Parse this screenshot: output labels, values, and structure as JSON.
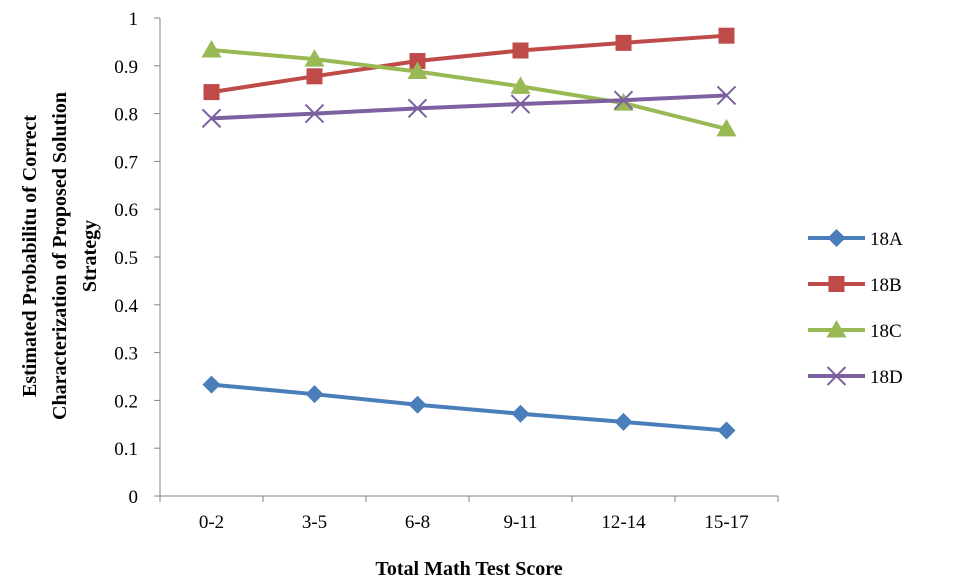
{
  "chart_data": {
    "type": "line",
    "categories": [
      "0-2",
      "3-5",
      "6-8",
      "9-11",
      "12-14",
      "15-17"
    ],
    "series": [
      {
        "name": "18A",
        "values": [
          0.233,
          0.213,
          0.191,
          0.172,
          0.155,
          0.137
        ],
        "color": "#4a7ebb",
        "marker": "diamond"
      },
      {
        "name": "18B",
        "values": [
          0.845,
          0.878,
          0.91,
          0.932,
          0.948,
          0.963
        ],
        "color": "#be4b48",
        "marker": "square"
      },
      {
        "name": "18C",
        "values": [
          0.933,
          0.914,
          0.888,
          0.857,
          0.822,
          0.768
        ],
        "color": "#98b954",
        "marker": "triangle"
      },
      {
        "name": "18D",
        "values": [
          0.79,
          0.8,
          0.811,
          0.82,
          0.828,
          0.838
        ],
        "color": "#7d60a0",
        "marker": "x"
      }
    ],
    "yticks": [
      "0",
      "0.1",
      "0.2",
      "0.3",
      "0.4",
      "0.5",
      "0.6",
      "0.7",
      "0.8",
      "0.9",
      "1"
    ],
    "ylim": [
      0,
      1
    ],
    "xlabel": "Total Math Test Score",
    "ylabel_lines": [
      "Estimated Probabilitu of Correct",
      "Characterization of Proposed Solution",
      "Strategy"
    ],
    "grid": false,
    "legend_position": "right"
  }
}
